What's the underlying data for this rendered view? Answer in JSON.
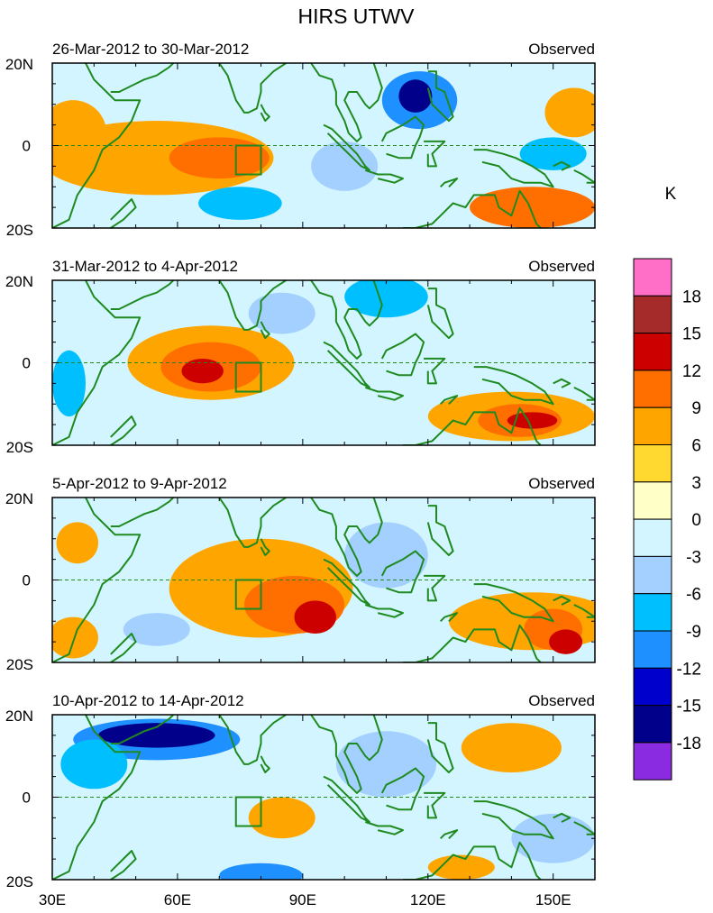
{
  "figure": {
    "title": "HIRS UTWV",
    "unit_label": "K",
    "run_label": "Observed",
    "lon_ticks": [
      "30E",
      "60E",
      "90E",
      "120E",
      "150E"
    ],
    "lat_ticks": [
      "20N",
      "0",
      "20S"
    ],
    "panels": [
      {
        "period": "26-Mar-2012 to 30-Mar-2012",
        "anomalies": [
          {
            "lon": 55,
            "lat": -3,
            "rl": 28,
            "rt": 9,
            "v": 6
          },
          {
            "lon": 70,
            "lat": -3,
            "rl": 12,
            "rt": 5,
            "v": 9
          },
          {
            "lon": 35,
            "lat": 3,
            "rl": 8,
            "rt": 8,
            "v": 6
          },
          {
            "lon": 145,
            "lat": -15,
            "rl": 15,
            "rt": 5,
            "v": 9
          },
          {
            "lon": 118,
            "lat": 11,
            "rl": 9,
            "rt": 7,
            "v": -9
          },
          {
            "lon": 117,
            "lat": 12,
            "rl": 4,
            "rt": 4,
            "v": -15
          },
          {
            "lon": 155,
            "lat": 8,
            "rl": 7,
            "rt": 6,
            "v": 6
          },
          {
            "lon": 75,
            "lat": -14,
            "rl": 10,
            "rt": 4,
            "v": -6
          },
          {
            "lon": 100,
            "lat": -5,
            "rl": 8,
            "rt": 6,
            "v": -3
          },
          {
            "lon": 150,
            "lat": -2,
            "rl": 8,
            "rt": 4,
            "v": -6
          }
        ]
      },
      {
        "period": "31-Mar-2012 to 4-Apr-2012",
        "anomalies": [
          {
            "lon": 68,
            "lat": 0,
            "rl": 20,
            "rt": 9,
            "v": 6
          },
          {
            "lon": 68,
            "lat": -1,
            "rl": 12,
            "rt": 6,
            "v": 9
          },
          {
            "lon": 66,
            "lat": -2,
            "rl": 5,
            "rt": 3,
            "v": 12
          },
          {
            "lon": 140,
            "lat": -13,
            "rl": 20,
            "rt": 6,
            "v": 6
          },
          {
            "lon": 142,
            "lat": -14,
            "rl": 10,
            "rt": 4,
            "v": 9
          },
          {
            "lon": 145,
            "lat": -14,
            "rl": 6,
            "rt": 2,
            "v": 12
          },
          {
            "lon": 110,
            "lat": 16,
            "rl": 10,
            "rt": 5,
            "v": -6
          },
          {
            "lon": 34,
            "lat": -5,
            "rl": 4,
            "rt": 8,
            "v": -6
          },
          {
            "lon": 85,
            "lat": 12,
            "rl": 8,
            "rt": 5,
            "v": -3
          }
        ]
      },
      {
        "period": "5-Apr-2012 to 9-Apr-2012",
        "anomalies": [
          {
            "lon": 80,
            "lat": -2,
            "rl": 22,
            "rt": 12,
            "v": 6
          },
          {
            "lon": 88,
            "lat": -6,
            "rl": 12,
            "rt": 7,
            "v": 9
          },
          {
            "lon": 93,
            "lat": -9,
            "rl": 5,
            "rt": 4,
            "v": 12
          },
          {
            "lon": 145,
            "lat": -10,
            "rl": 20,
            "rt": 7,
            "v": 6
          },
          {
            "lon": 150,
            "lat": -12,
            "rl": 7,
            "rt": 5,
            "v": 9
          },
          {
            "lon": 153,
            "lat": -15,
            "rl": 4,
            "rt": 3,
            "v": 12
          },
          {
            "lon": 36,
            "lat": 9,
            "rl": 5,
            "rt": 5,
            "v": 6
          },
          {
            "lon": 35,
            "lat": -14,
            "rl": 6,
            "rt": 5,
            "v": 6
          },
          {
            "lon": 110,
            "lat": 6,
            "rl": 10,
            "rt": 8,
            "v": -3
          },
          {
            "lon": 55,
            "lat": -12,
            "rl": 8,
            "rt": 4,
            "v": -3
          }
        ]
      },
      {
        "period": "10-Apr-2012 to 14-Apr-2012",
        "anomalies": [
          {
            "lon": 55,
            "lat": 14,
            "rl": 20,
            "rt": 5,
            "v": -9
          },
          {
            "lon": 55,
            "lat": 15,
            "rl": 14,
            "rt": 3,
            "v": -15
          },
          {
            "lon": 40,
            "lat": 8,
            "rl": 8,
            "rt": 6,
            "v": -6
          },
          {
            "lon": 140,
            "lat": 12,
            "rl": 12,
            "rt": 6,
            "v": 6
          },
          {
            "lon": 85,
            "lat": -5,
            "rl": 8,
            "rt": 5,
            "v": 6
          },
          {
            "lon": 128,
            "lat": -17,
            "rl": 8,
            "rt": 3,
            "v": 6
          },
          {
            "lon": 80,
            "lat": -19,
            "rl": 10,
            "rt": 3,
            "v": -9
          },
          {
            "lon": 110,
            "lat": 8,
            "rl": 12,
            "rt": 8,
            "v": -3
          },
          {
            "lon": 150,
            "lat": -10,
            "rl": 10,
            "rt": 6,
            "v": -3
          }
        ]
      }
    ],
    "colorbar": {
      "colors": [
        "#ff6ec7",
        "#a52a2a",
        "#cd0000",
        "#ff6f00",
        "#ffa500",
        "#ffd92f",
        "#ffffc8",
        "#d2f5ff",
        "#a3d0ff",
        "#00bfff",
        "#1e90ff",
        "#0000cd",
        "#00008b",
        "#8a2be2"
      ],
      "labels": [
        "18",
        "15",
        "12",
        "9",
        "6",
        "3",
        "0",
        "-3",
        "-6",
        "-9",
        "-12",
        "-15",
        "-18"
      ]
    },
    "box_region": {
      "lon": [
        74,
        80
      ],
      "lat": [
        -7,
        0
      ]
    }
  }
}
